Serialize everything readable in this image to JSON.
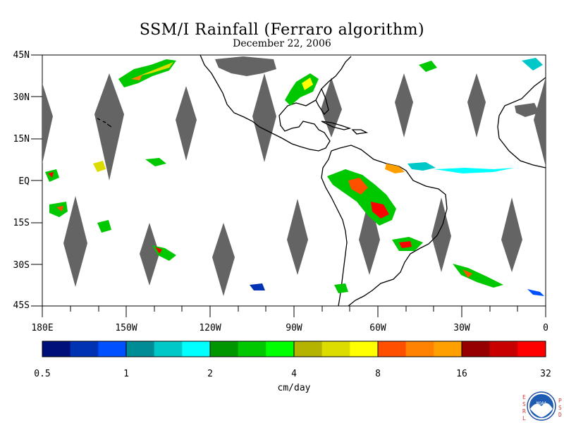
{
  "header": {
    "title": "SSM/I Rainfall (Ferraro algorithm)",
    "date": "December 22, 2006"
  },
  "map": {
    "latitude_labels": [
      "45N",
      "30N",
      "15N",
      "EQ",
      "15S",
      "30S",
      "45S"
    ],
    "longitude_labels": [
      "180E",
      "150W",
      "120W",
      "90W",
      "60W",
      "30W",
      "0"
    ],
    "no_data_color": "#646464",
    "land_outline_color": "#000000"
  },
  "colorbar": {
    "tick_labels": [
      "0.5",
      "1",
      "2",
      "4",
      "8",
      "16",
      "32"
    ],
    "unit": "cm/day",
    "colors": [
      "#00107a",
      "#0032b4",
      "#0050ff",
      "#008c96",
      "#00c8c8",
      "#00ffff",
      "#009600",
      "#00c800",
      "#00ff00",
      "#b4b400",
      "#dcdc00",
      "#ffff00",
      "#ff5000",
      "#ff8200",
      "#ffa000",
      "#960000",
      "#c80000",
      "#ff0000"
    ]
  },
  "logo": {
    "agency": "NOAA",
    "left_letters": [
      "E",
      "S",
      "R",
      "L"
    ],
    "right_letters": [
      "P",
      "S",
      "D"
    ]
  }
}
